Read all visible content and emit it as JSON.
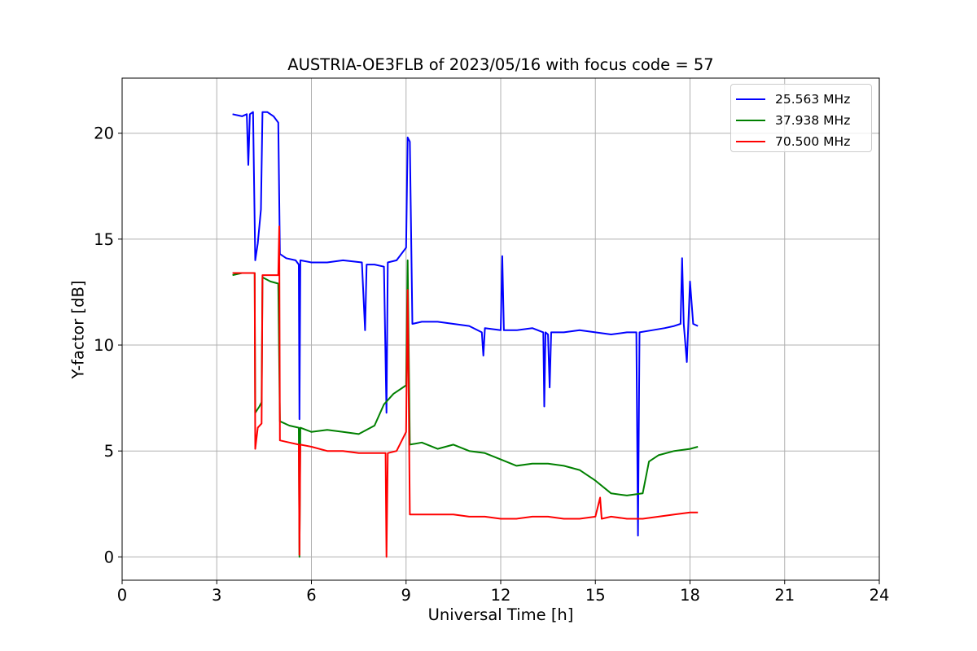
{
  "chart_data": {
    "type": "line",
    "title": "AUSTRIA-OE3FLB of 2023/05/16 with focus code = 57",
    "xlabel": "Universal Time [h]",
    "ylabel": "Y-factor [dB]",
    "xlim": [
      0,
      24
    ],
    "ylim": [
      -1.1,
      22.6
    ],
    "xticks": [
      0,
      3,
      6,
      9,
      12,
      15,
      18,
      21,
      24
    ],
    "yticks": [
      0,
      5,
      10,
      15,
      20
    ],
    "grid": true,
    "legend_position": "top-right",
    "series": [
      {
        "name": "25.563 MHz",
        "color": "#0000ff",
        "points": [
          [
            3.5,
            20.9
          ],
          [
            3.8,
            20.8
          ],
          [
            3.95,
            20.9
          ],
          [
            4.0,
            18.5
          ],
          [
            4.05,
            20.9
          ],
          [
            4.15,
            21.0
          ],
          [
            4.22,
            14.0
          ],
          [
            4.3,
            14.8
          ],
          [
            4.4,
            16.4
          ],
          [
            4.45,
            21.0
          ],
          [
            4.6,
            21.0
          ],
          [
            4.8,
            20.8
          ],
          [
            4.95,
            20.5
          ],
          [
            5.0,
            14.3
          ],
          [
            5.2,
            14.1
          ],
          [
            5.5,
            14.0
          ],
          [
            5.6,
            13.8
          ],
          [
            5.62,
            6.5
          ],
          [
            5.65,
            14.0
          ],
          [
            6.0,
            13.9
          ],
          [
            6.5,
            13.9
          ],
          [
            7.0,
            14.0
          ],
          [
            7.6,
            13.9
          ],
          [
            7.7,
            10.7
          ],
          [
            7.75,
            13.8
          ],
          [
            8.0,
            13.8
          ],
          [
            8.3,
            13.7
          ],
          [
            8.38,
            6.8
          ],
          [
            8.42,
            13.9
          ],
          [
            8.7,
            14.0
          ],
          [
            9.0,
            14.6
          ],
          [
            9.05,
            19.8
          ],
          [
            9.12,
            19.6
          ],
          [
            9.2,
            11.0
          ],
          [
            9.5,
            11.1
          ],
          [
            10.0,
            11.1
          ],
          [
            10.5,
            11.0
          ],
          [
            11.0,
            10.9
          ],
          [
            11.4,
            10.6
          ],
          [
            11.45,
            9.5
          ],
          [
            11.5,
            10.8
          ],
          [
            12.0,
            10.7
          ],
          [
            12.05,
            14.2
          ],
          [
            12.1,
            10.7
          ],
          [
            12.5,
            10.7
          ],
          [
            13.0,
            10.8
          ],
          [
            13.35,
            10.6
          ],
          [
            13.38,
            7.1
          ],
          [
            13.42,
            10.6
          ],
          [
            13.5,
            10.5
          ],
          [
            13.55,
            8.0
          ],
          [
            13.6,
            10.6
          ],
          [
            14.0,
            10.6
          ],
          [
            14.5,
            10.7
          ],
          [
            15.0,
            10.6
          ],
          [
            15.5,
            10.5
          ],
          [
            16.0,
            10.6
          ],
          [
            16.3,
            10.6
          ],
          [
            16.35,
            1.0
          ],
          [
            16.4,
            10.6
          ],
          [
            16.8,
            10.7
          ],
          [
            17.2,
            10.8
          ],
          [
            17.5,
            10.9
          ],
          [
            17.7,
            11.0
          ],
          [
            17.75,
            14.1
          ],
          [
            17.8,
            11.0
          ],
          [
            17.9,
            9.2
          ],
          [
            18.0,
            13.0
          ],
          [
            18.1,
            11.0
          ],
          [
            18.25,
            10.9
          ]
        ]
      },
      {
        "name": "37.938 MHz",
        "color": "#008000",
        "points": [
          [
            3.5,
            13.3
          ],
          [
            3.8,
            13.4
          ],
          [
            4.2,
            13.4
          ],
          [
            4.22,
            6.8
          ],
          [
            4.35,
            7.1
          ],
          [
            4.42,
            7.3
          ],
          [
            4.45,
            13.2
          ],
          [
            4.7,
            13.0
          ],
          [
            4.95,
            12.9
          ],
          [
            5.0,
            6.4
          ],
          [
            5.3,
            6.2
          ],
          [
            5.6,
            6.1
          ],
          [
            5.62,
            0.0
          ],
          [
            5.65,
            6.1
          ],
          [
            6.0,
            5.9
          ],
          [
            6.5,
            6.0
          ],
          [
            7.0,
            5.9
          ],
          [
            7.5,
            5.8
          ],
          [
            8.0,
            6.2
          ],
          [
            8.3,
            7.2
          ],
          [
            8.6,
            7.7
          ],
          [
            9.0,
            8.1
          ],
          [
            9.05,
            14.0
          ],
          [
            9.12,
            5.3
          ],
          [
            9.5,
            5.4
          ],
          [
            10.0,
            5.1
          ],
          [
            10.5,
            5.3
          ],
          [
            11.0,
            5.0
          ],
          [
            11.5,
            4.9
          ],
          [
            12.0,
            4.6
          ],
          [
            12.5,
            4.3
          ],
          [
            13.0,
            4.4
          ],
          [
            13.5,
            4.4
          ],
          [
            14.0,
            4.3
          ],
          [
            14.5,
            4.1
          ],
          [
            15.0,
            3.6
          ],
          [
            15.5,
            3.0
          ],
          [
            16.0,
            2.9
          ],
          [
            16.5,
            3.0
          ],
          [
            16.7,
            4.5
          ],
          [
            17.0,
            4.8
          ],
          [
            17.5,
            5.0
          ],
          [
            18.0,
            5.1
          ],
          [
            18.25,
            5.2
          ]
        ]
      },
      {
        "name": "70.500 MHz",
        "color": "#ff0000",
        "points": [
          [
            3.5,
            13.4
          ],
          [
            3.8,
            13.4
          ],
          [
            4.2,
            13.4
          ],
          [
            4.22,
            5.1
          ],
          [
            4.3,
            6.1
          ],
          [
            4.42,
            6.3
          ],
          [
            4.45,
            13.3
          ],
          [
            4.7,
            13.3
          ],
          [
            4.95,
            13.3
          ],
          [
            4.98,
            15.6
          ],
          [
            5.0,
            5.5
          ],
          [
            5.3,
            5.4
          ],
          [
            5.6,
            5.3
          ],
          [
            5.62,
            0.1
          ],
          [
            5.65,
            5.3
          ],
          [
            6.0,
            5.2
          ],
          [
            6.5,
            5.0
          ],
          [
            7.0,
            5.0
          ],
          [
            7.5,
            4.9
          ],
          [
            8.0,
            4.9
          ],
          [
            8.35,
            4.9
          ],
          [
            8.38,
            0.0
          ],
          [
            8.42,
            4.9
          ],
          [
            8.7,
            5.0
          ],
          [
            9.0,
            5.9
          ],
          [
            9.05,
            12.6
          ],
          [
            9.12,
            2.0
          ],
          [
            9.5,
            2.0
          ],
          [
            10.0,
            2.0
          ],
          [
            10.5,
            2.0
          ],
          [
            11.0,
            1.9
          ],
          [
            11.5,
            1.9
          ],
          [
            12.0,
            1.8
          ],
          [
            12.5,
            1.8
          ],
          [
            13.0,
            1.9
          ],
          [
            13.5,
            1.9
          ],
          [
            14.0,
            1.8
          ],
          [
            14.5,
            1.8
          ],
          [
            15.0,
            1.9
          ],
          [
            15.15,
            2.8
          ],
          [
            15.2,
            1.8
          ],
          [
            15.5,
            1.9
          ],
          [
            16.0,
            1.8
          ],
          [
            16.5,
            1.8
          ],
          [
            17.0,
            1.9
          ],
          [
            17.5,
            2.0
          ],
          [
            18.0,
            2.1
          ],
          [
            18.25,
            2.1
          ]
        ]
      }
    ]
  }
}
